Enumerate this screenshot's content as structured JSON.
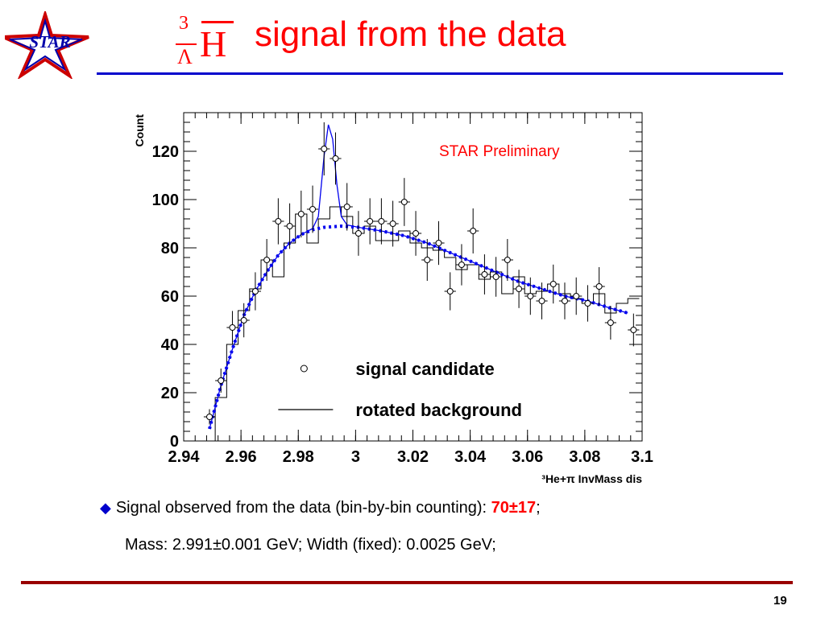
{
  "logo": {
    "text": "STAR"
  },
  "title": {
    "nucleus_mass": "3",
    "nucleus_hyperon": "Λ",
    "nucleus_symbol": "H",
    "text": "signal from the data"
  },
  "annotation": "STAR Preliminary",
  "chart_data": {
    "type": "scatter",
    "title": "",
    "xlabel": "³He+π InvMass dis",
    "ylabel": "Count",
    "xlim": [
      2.94,
      3.1
    ],
    "ylim": [
      0,
      136
    ],
    "x_ticks": [
      "2.94",
      "2.96",
      "2.98",
      "3",
      "3.02",
      "3.04",
      "3.06",
      "3.08",
      "3.1"
    ],
    "y_ticks": [
      "0",
      "20",
      "40",
      "60",
      "80",
      "100",
      "120"
    ],
    "legend": {
      "placement": "bottom-right",
      "entries": [
        "signal candidate",
        "rotated background"
      ]
    },
    "series": [
      {
        "name": "signal candidate",
        "style": "open-circle-with-error-bars",
        "points": [
          {
            "x": 2.949,
            "y": 10
          },
          {
            "x": 2.953,
            "y": 25
          },
          {
            "x": 2.957,
            "y": 47
          },
          {
            "x": 2.961,
            "y": 50
          },
          {
            "x": 2.965,
            "y": 62
          },
          {
            "x": 2.969,
            "y": 75
          },
          {
            "x": 2.973,
            "y": 91
          },
          {
            "x": 2.977,
            "y": 89
          },
          {
            "x": 2.981,
            "y": 94
          },
          {
            "x": 2.985,
            "y": 96
          },
          {
            "x": 2.989,
            "y": 121
          },
          {
            "x": 2.993,
            "y": 117
          },
          {
            "x": 2.997,
            "y": 97
          },
          {
            "x": 3.001,
            "y": 86
          },
          {
            "x": 3.005,
            "y": 91
          },
          {
            "x": 3.009,
            "y": 91
          },
          {
            "x": 3.013,
            "y": 90
          },
          {
            "x": 3.017,
            "y": 99
          },
          {
            "x": 3.021,
            "y": 86
          },
          {
            "x": 3.025,
            "y": 75
          },
          {
            "x": 3.029,
            "y": 82
          },
          {
            "x": 3.033,
            "y": 62
          },
          {
            "x": 3.037,
            "y": 73
          },
          {
            "x": 3.041,
            "y": 87
          },
          {
            "x": 3.045,
            "y": 69
          },
          {
            "x": 3.049,
            "y": 68
          },
          {
            "x": 3.053,
            "y": 75
          },
          {
            "x": 3.057,
            "y": 63
          },
          {
            "x": 3.061,
            "y": 60
          },
          {
            "x": 3.065,
            "y": 58
          },
          {
            "x": 3.069,
            "y": 65
          },
          {
            "x": 3.073,
            "y": 58
          },
          {
            "x": 3.077,
            "y": 60
          },
          {
            "x": 3.081,
            "y": 57
          },
          {
            "x": 3.085,
            "y": 64
          },
          {
            "x": 3.089,
            "y": 49
          },
          {
            "x": 3.097,
            "y": 46
          }
        ]
      },
      {
        "name": "rotated background",
        "style": "step-histogram",
        "bin_width": 0.004,
        "points": [
          {
            "x": 2.949,
            "y": 0
          },
          {
            "x": 2.953,
            "y": 18
          },
          {
            "x": 2.957,
            "y": 40
          },
          {
            "x": 2.961,
            "y": 54
          },
          {
            "x": 2.965,
            "y": 63
          },
          {
            "x": 2.969,
            "y": 75
          },
          {
            "x": 2.973,
            "y": 68
          },
          {
            "x": 2.977,
            "y": 82
          },
          {
            "x": 2.981,
            "y": 94
          },
          {
            "x": 2.985,
            "y": 82
          },
          {
            "x": 2.989,
            "y": 92
          },
          {
            "x": 2.993,
            "y": 97
          },
          {
            "x": 2.997,
            "y": 93
          },
          {
            "x": 3.001,
            "y": 86
          },
          {
            "x": 3.005,
            "y": 89
          },
          {
            "x": 3.009,
            "y": 83
          },
          {
            "x": 3.013,
            "y": 83
          },
          {
            "x": 3.017,
            "y": 87
          },
          {
            "x": 3.021,
            "y": 82
          },
          {
            "x": 3.025,
            "y": 80
          },
          {
            "x": 3.029,
            "y": 79
          },
          {
            "x": 3.033,
            "y": 76
          },
          {
            "x": 3.037,
            "y": 71
          },
          {
            "x": 3.041,
            "y": 73
          },
          {
            "x": 3.045,
            "y": 67
          },
          {
            "x": 3.049,
            "y": 70
          },
          {
            "x": 3.053,
            "y": 61
          },
          {
            "x": 3.057,
            "y": 68
          },
          {
            "x": 3.061,
            "y": 61
          },
          {
            "x": 3.065,
            "y": 62
          },
          {
            "x": 3.069,
            "y": 65
          },
          {
            "x": 3.073,
            "y": 61
          },
          {
            "x": 3.077,
            "y": 59
          },
          {
            "x": 3.081,
            "y": 57
          },
          {
            "x": 3.085,
            "y": 61
          },
          {
            "x": 3.089,
            "y": 53
          },
          {
            "x": 3.093,
            "y": 57
          },
          {
            "x": 3.097,
            "y": 59
          }
        ]
      },
      {
        "name": "",
        "style": "dotted-fit-background",
        "points": [
          {
            "x": 2.949,
            "y": 5
          },
          {
            "x": 2.953,
            "y": 23
          },
          {
            "x": 2.957,
            "y": 38
          },
          {
            "x": 2.961,
            "y": 52
          },
          {
            "x": 2.965,
            "y": 62
          },
          {
            "x": 2.969,
            "y": 70
          },
          {
            "x": 2.973,
            "y": 77
          },
          {
            "x": 2.977,
            "y": 82
          },
          {
            "x": 2.981,
            "y": 85.5
          },
          {
            "x": 2.985,
            "y": 87.5
          },
          {
            "x": 2.989,
            "y": 88.5
          },
          {
            "x": 2.995,
            "y": 89
          },
          {
            "x": 3.001,
            "y": 88.5
          },
          {
            "x": 3.009,
            "y": 87
          },
          {
            "x": 3.017,
            "y": 85
          },
          {
            "x": 3.025,
            "y": 82
          },
          {
            "x": 3.033,
            "y": 78
          },
          {
            "x": 3.041,
            "y": 74
          },
          {
            "x": 3.049,
            "y": 70
          },
          {
            "x": 3.057,
            "y": 66
          },
          {
            "x": 3.065,
            "y": 63
          },
          {
            "x": 3.073,
            "y": 60
          },
          {
            "x": 3.081,
            "y": 58
          },
          {
            "x": 3.089,
            "y": 55
          },
          {
            "x": 3.095,
            "y": 53
          }
        ]
      },
      {
        "name": "",
        "style": "solid-fit-signal-plus-background",
        "points": [
          {
            "x": 2.949,
            "y": 5
          },
          {
            "x": 2.953,
            "y": 23
          },
          {
            "x": 2.957,
            "y": 38
          },
          {
            "x": 2.961,
            "y": 52
          },
          {
            "x": 2.965,
            "y": 62
          },
          {
            "x": 2.969,
            "y": 70
          },
          {
            "x": 2.973,
            "y": 77
          },
          {
            "x": 2.977,
            "y": 82
          },
          {
            "x": 2.981,
            "y": 85.5
          },
          {
            "x": 2.985,
            "y": 88
          },
          {
            "x": 2.987,
            "y": 93
          },
          {
            "x": 2.989,
            "y": 118
          },
          {
            "x": 2.9905,
            "y": 131
          },
          {
            "x": 2.992,
            "y": 125
          },
          {
            "x": 2.9935,
            "y": 106
          },
          {
            "x": 2.995,
            "y": 93
          },
          {
            "x": 2.997,
            "y": 89.5
          },
          {
            "x": 3.001,
            "y": 88.5
          },
          {
            "x": 3.009,
            "y": 87
          },
          {
            "x": 3.017,
            "y": 85
          },
          {
            "x": 3.025,
            "y": 82
          },
          {
            "x": 3.033,
            "y": 78
          },
          {
            "x": 3.041,
            "y": 74
          },
          {
            "x": 3.049,
            "y": 70
          },
          {
            "x": 3.057,
            "y": 66
          },
          {
            "x": 3.065,
            "y": 63
          },
          {
            "x": 3.073,
            "y": 60
          },
          {
            "x": 3.081,
            "y": 58
          },
          {
            "x": 3.089,
            "y": 55
          },
          {
            "x": 3.095,
            "y": 53
          }
        ]
      }
    ]
  },
  "bullet": {
    "prefix": "Signal observed from the data (bin-by-bin counting): ",
    "value": "70±17",
    "suffix": ";"
  },
  "mass_line": "Mass: 2.991±0.001 GeV; Width (fixed): 0.0025 GeV;",
  "page_number": "19",
  "colors": {
    "accent_red": "#ff0000",
    "rule_blue": "#0000cc",
    "fit_blue": "#0000ee",
    "footer_rule": "#990000"
  }
}
